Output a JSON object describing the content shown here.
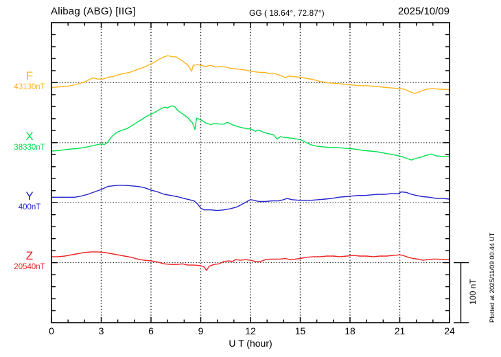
{
  "header": {
    "station": "Alibag (ABG)  [IIG]",
    "coords": "GG ( 18.64°,  72.87°)",
    "date": "2025/10/09"
  },
  "plotted_note": "Plotted at 2025/11/09 00:44 UT",
  "chart_data": {
    "type": "line",
    "station": "Alibag (ABG)",
    "institute": "IIG",
    "geographic_coords": {
      "lat_deg": 18.64,
      "lon_deg": 72.87
    },
    "date": "2025/10/09",
    "x_axis": {
      "label": "U T (hour)",
      "range": [
        0,
        24
      ],
      "major_tick_hours": 3,
      "minor_tick_hours": 1,
      "tick_labels": [
        "0",
        "3",
        "6",
        "9",
        "12",
        "15",
        "18",
        "21",
        "24"
      ]
    },
    "y_axis": {
      "tick_nT": 20,
      "ticks": 25
    },
    "gridlines_vertical_hours": [
      3,
      6,
      9,
      12,
      15,
      18,
      21
    ],
    "grid_style": "dotted",
    "scale_bar": {
      "label": "100 nT",
      "nT": 100
    },
    "series": [
      {
        "name": "F",
        "label": "F",
        "base_label": "43130nT",
        "base_value": 43130,
        "unit": "nT",
        "color": "#FFB41E",
        "baseline_tick": 5,
        "points": [
          [
            0,
            43122
          ],
          [
            0.5,
            43123
          ],
          [
            1,
            43124
          ],
          [
            1.5,
            43127
          ],
          [
            2,
            43131
          ],
          [
            2.2,
            43134
          ],
          [
            2.5,
            43138
          ],
          [
            2.8,
            43136
          ],
          [
            3.1,
            43136
          ],
          [
            3.4,
            43139
          ],
          [
            3.7,
            43140
          ],
          [
            4,
            43143
          ],
          [
            4.3,
            43145
          ],
          [
            4.7,
            43147
          ],
          [
            5,
            43150
          ],
          [
            5.3,
            43153
          ],
          [
            5.6,
            43156
          ],
          [
            5.9,
            43160
          ],
          [
            6.2,
            43164
          ],
          [
            6.5,
            43169
          ],
          [
            6.8,
            43173
          ],
          [
            7,
            43175
          ],
          [
            7.3,
            43173
          ],
          [
            7.5,
            43173
          ],
          [
            7.8,
            43168
          ],
          [
            8,
            43164
          ],
          [
            8.2,
            43160
          ],
          [
            8.35,
            43154
          ],
          [
            8.45,
            43149
          ],
          [
            8.55,
            43159
          ],
          [
            8.8,
            43160
          ],
          [
            9,
            43159
          ],
          [
            9.3,
            43157
          ],
          [
            9.6,
            43159
          ],
          [
            9.9,
            43156
          ],
          [
            10.2,
            43157
          ],
          [
            10.5,
            43156
          ],
          [
            10.8,
            43154
          ],
          [
            11.1,
            43153
          ],
          [
            11.4,
            43152
          ],
          [
            11.7,
            43151
          ],
          [
            12,
            43149
          ],
          [
            12.3,
            43148
          ],
          [
            12.6,
            43147
          ],
          [
            12.9,
            43147
          ],
          [
            13.1,
            43145
          ],
          [
            13.3,
            43146
          ],
          [
            13.6,
            43144
          ],
          [
            13.9,
            43141
          ],
          [
            14.1,
            43138
          ],
          [
            14.3,
            43141
          ],
          [
            14.6,
            43140
          ],
          [
            15,
            43139
          ],
          [
            15.4,
            43137
          ],
          [
            15.8,
            43135
          ],
          [
            16.2,
            43132
          ],
          [
            16.6,
            43130
          ],
          [
            17,
            43129
          ],
          [
            17.4,
            43128
          ],
          [
            17.8,
            43127
          ],
          [
            18.2,
            43126
          ],
          [
            18.6,
            43125
          ],
          [
            19,
            43125
          ],
          [
            19.4,
            43124
          ],
          [
            19.8,
            43123
          ],
          [
            20.2,
            43122
          ],
          [
            20.6,
            43121
          ],
          [
            21,
            43120
          ],
          [
            21.3,
            43119
          ],
          [
            21.6,
            43115
          ],
          [
            21.9,
            43112
          ],
          [
            22.1,
            43114
          ],
          [
            22.3,
            43116
          ],
          [
            22.6,
            43119
          ],
          [
            23,
            43120
          ],
          [
            23.4,
            43119
          ],
          [
            23.7,
            43119
          ],
          [
            24,
            43118
          ]
        ]
      },
      {
        "name": "X",
        "label": "X",
        "base_label": "38330nT",
        "base_value": 38330,
        "unit": "nT",
        "color": "#00E04E",
        "baseline_tick": 10,
        "points": [
          [
            0,
            38316
          ],
          [
            0.5,
            38317
          ],
          [
            1,
            38319
          ],
          [
            1.5,
            38320
          ],
          [
            2,
            38322
          ],
          [
            2.5,
            38325
          ],
          [
            3,
            38328
          ],
          [
            3.2,
            38327
          ],
          [
            3.4,
            38331
          ],
          [
            3.6,
            38339
          ],
          [
            3.8,
            38344
          ],
          [
            4,
            38348
          ],
          [
            4.3,
            38351
          ],
          [
            4.6,
            38354
          ],
          [
            5,
            38361
          ],
          [
            5.4,
            38368
          ],
          [
            5.8,
            38375
          ],
          [
            6.2,
            38380
          ],
          [
            6.5,
            38385
          ],
          [
            6.8,
            38389
          ],
          [
            7,
            38388
          ],
          [
            7.2,
            38391
          ],
          [
            7.4,
            38391
          ],
          [
            7.6,
            38384
          ],
          [
            7.9,
            38378
          ],
          [
            8.2,
            38372
          ],
          [
            8.5,
            38363
          ],
          [
            8.6,
            38356
          ],
          [
            8.65,
            38352
          ],
          [
            8.75,
            38371
          ],
          [
            9,
            38368
          ],
          [
            9.3,
            38363
          ],
          [
            9.6,
            38360
          ],
          [
            9.8,
            38362
          ],
          [
            10.1,
            38361
          ],
          [
            10.4,
            38361
          ],
          [
            10.6,
            38364
          ],
          [
            10.9,
            38360
          ],
          [
            11.2,
            38357
          ],
          [
            11.5,
            38355
          ],
          [
            11.8,
            38353
          ],
          [
            12,
            38353
          ],
          [
            12.3,
            38349
          ],
          [
            12.5,
            38351
          ],
          [
            12.8,
            38347
          ],
          [
            13.1,
            38345
          ],
          [
            13.4,
            38343
          ],
          [
            13.6,
            38336
          ],
          [
            13.8,
            38340
          ],
          [
            14,
            38339
          ],
          [
            14.3,
            38338
          ],
          [
            14.6,
            38337
          ],
          [
            15,
            38335
          ],
          [
            15.3,
            38331
          ],
          [
            15.6,
            38327
          ],
          [
            16,
            38324
          ],
          [
            16.4,
            38323
          ],
          [
            16.8,
            38322
          ],
          [
            17.2,
            38322
          ],
          [
            17.6,
            38321
          ],
          [
            18,
            38320
          ],
          [
            18.4,
            38319
          ],
          [
            18.8,
            38317
          ],
          [
            19.2,
            38316
          ],
          [
            19.6,
            38315
          ],
          [
            20,
            38313
          ],
          [
            20.4,
            38311
          ],
          [
            20.8,
            38309
          ],
          [
            21.1,
            38307
          ],
          [
            21.4,
            38304
          ],
          [
            21.7,
            38301
          ],
          [
            22,
            38304
          ],
          [
            22.3,
            38306
          ],
          [
            22.6,
            38309
          ],
          [
            22.9,
            38311
          ],
          [
            23.2,
            38308
          ],
          [
            23.6,
            38307
          ],
          [
            24,
            38307
          ]
        ]
      },
      {
        "name": "Y",
        "label": "Y",
        "base_label": "400nT",
        "base_value": 400,
        "unit": "nT",
        "color": "#2424CC",
        "baseline_tick": 15,
        "points": [
          [
            0,
            409
          ],
          [
            0.5,
            409
          ],
          [
            1,
            409
          ],
          [
            1.4,
            409
          ],
          [
            1.8,
            411
          ],
          [
            2.2,
            414
          ],
          [
            2.6,
            418
          ],
          [
            3,
            422
          ],
          [
            3.4,
            427
          ],
          [
            3.7,
            428
          ],
          [
            4,
            429
          ],
          [
            4.4,
            429
          ],
          [
            4.8,
            428
          ],
          [
            5.2,
            427
          ],
          [
            5.6,
            425
          ],
          [
            6,
            421
          ],
          [
            6.4,
            418
          ],
          [
            6.8,
            414
          ],
          [
            7.2,
            412
          ],
          [
            7.6,
            410
          ],
          [
            8,
            407
          ],
          [
            8.3,
            405
          ],
          [
            8.6,
            403
          ],
          [
            8.8,
            398
          ],
          [
            9,
            391
          ],
          [
            9.2,
            388
          ],
          [
            9.6,
            388
          ],
          [
            10,
            387
          ],
          [
            10.4,
            388
          ],
          [
            10.8,
            390
          ],
          [
            11.2,
            393
          ],
          [
            11.6,
            399
          ],
          [
            12,
            405
          ],
          [
            12.2,
            404
          ],
          [
            12.5,
            402
          ],
          [
            12.9,
            402
          ],
          [
            13.3,
            403
          ],
          [
            13.7,
            403
          ],
          [
            14,
            405
          ],
          [
            14.2,
            407
          ],
          [
            14.5,
            405
          ],
          [
            14.9,
            404
          ],
          [
            15.3,
            404
          ],
          [
            15.7,
            404
          ],
          [
            16.1,
            405
          ],
          [
            16.5,
            406
          ],
          [
            16.9,
            407
          ],
          [
            17.3,
            409
          ],
          [
            17.7,
            410
          ],
          [
            18.1,
            411
          ],
          [
            18.5,
            412
          ],
          [
            18.9,
            412
          ],
          [
            19.3,
            413
          ],
          [
            19.7,
            414
          ],
          [
            20.1,
            414
          ],
          [
            20.5,
            415
          ],
          [
            20.9,
            415
          ],
          [
            21.1,
            418
          ],
          [
            21.4,
            417
          ],
          [
            21.7,
            414
          ],
          [
            22,
            412
          ],
          [
            22.4,
            410
          ],
          [
            22.8,
            409
          ],
          [
            23.2,
            407
          ],
          [
            23.6,
            407
          ],
          [
            24,
            406
          ]
        ]
      },
      {
        "name": "Z",
        "label": "Z",
        "base_label": "20540nT",
        "base_value": 20540,
        "unit": "nT",
        "color": "#EE2222",
        "baseline_tick": 20,
        "points": [
          [
            0,
            20550
          ],
          [
            0.4,
            20550
          ],
          [
            0.8,
            20551
          ],
          [
            1.2,
            20553
          ],
          [
            1.6,
            20555
          ],
          [
            2,
            20557
          ],
          [
            2.4,
            20558
          ],
          [
            2.8,
            20558
          ],
          [
            3.2,
            20557
          ],
          [
            3.6,
            20555
          ],
          [
            4,
            20553
          ],
          [
            4.4,
            20551
          ],
          [
            4.8,
            20549
          ],
          [
            5.2,
            20546
          ],
          [
            5.6,
            20544
          ],
          [
            6,
            20543
          ],
          [
            6.4,
            20541
          ],
          [
            6.8,
            20538
          ],
          [
            7.2,
            20537
          ],
          [
            7.6,
            20537
          ],
          [
            7.9,
            20538
          ],
          [
            8.2,
            20536
          ],
          [
            8.6,
            20536
          ],
          [
            9,
            20535
          ],
          [
            9.2,
            20533
          ],
          [
            9.35,
            20527
          ],
          [
            9.5,
            20534
          ],
          [
            9.8,
            20537
          ],
          [
            10.1,
            20538
          ],
          [
            10.4,
            20542
          ],
          [
            10.7,
            20543
          ],
          [
            10.9,
            20542
          ],
          [
            11.1,
            20545
          ],
          [
            11.4,
            20544
          ],
          [
            11.7,
            20545
          ],
          [
            12,
            20544
          ],
          [
            12.3,
            20542
          ],
          [
            12.6,
            20542
          ],
          [
            12.9,
            20545
          ],
          [
            13.2,
            20546
          ],
          [
            13.5,
            20546
          ],
          [
            13.8,
            20546
          ],
          [
            14.1,
            20547
          ],
          [
            14.4,
            20545
          ],
          [
            14.7,
            20546
          ],
          [
            15,
            20547
          ],
          [
            15.4,
            20549
          ],
          [
            15.8,
            20550
          ],
          [
            16.2,
            20550
          ],
          [
            16.6,
            20551
          ],
          [
            17,
            20551
          ],
          [
            17.4,
            20550
          ],
          [
            17.8,
            20551
          ],
          [
            18.2,
            20552
          ],
          [
            18.6,
            20551
          ],
          [
            19,
            20551
          ],
          [
            19.4,
            20550
          ],
          [
            19.8,
            20551
          ],
          [
            20.2,
            20551
          ],
          [
            20.6,
            20552
          ],
          [
            21,
            20553
          ],
          [
            21.2,
            20552
          ],
          [
            21.5,
            20549
          ],
          [
            21.8,
            20547
          ],
          [
            22.1,
            20546
          ],
          [
            22.4,
            20544
          ],
          [
            22.7,
            20545
          ],
          [
            23,
            20546
          ],
          [
            23.3,
            20546
          ],
          [
            23.6,
            20545
          ],
          [
            24,
            20545
          ]
        ]
      }
    ]
  }
}
